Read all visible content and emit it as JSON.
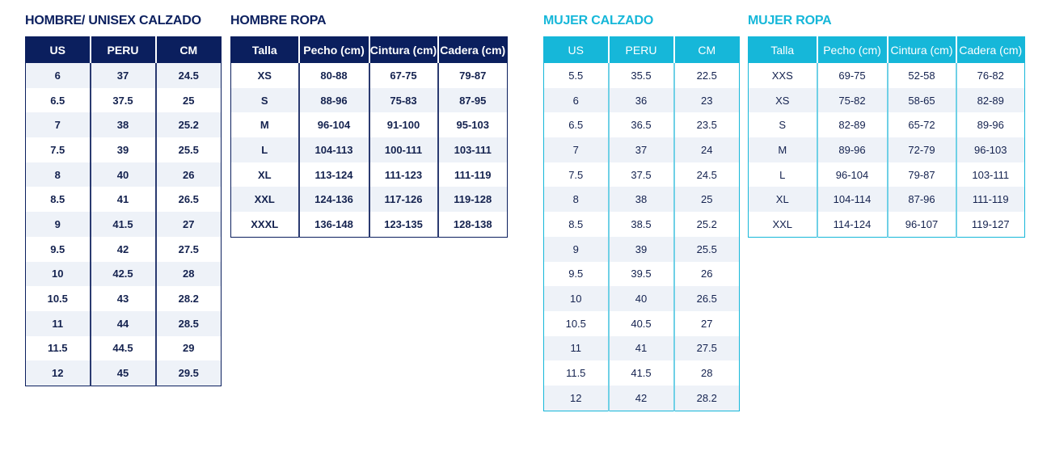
{
  "tables": [
    {
      "title": "HOMBRE/ UNISEX CALZADO",
      "theme": "navy",
      "color": "#0b1f5e",
      "headers": [
        "US",
        "PERU",
        "CM"
      ],
      "rows": [
        [
          "6",
          "37",
          "24.5"
        ],
        [
          "6.5",
          "37.5",
          "25"
        ],
        [
          "7",
          "38",
          "25.2"
        ],
        [
          "7.5",
          "39",
          "25.5"
        ],
        [
          "8",
          "40",
          "26"
        ],
        [
          "8.5",
          "41",
          "26.5"
        ],
        [
          "9",
          "41.5",
          "27"
        ],
        [
          "9.5",
          "42",
          "27.5"
        ],
        [
          "10",
          "42.5",
          "28"
        ],
        [
          "10.5",
          "43",
          "28.2"
        ],
        [
          "11",
          "44",
          "28.5"
        ],
        [
          "11.5",
          "44.5",
          "29"
        ],
        [
          "12",
          "45",
          "29.5"
        ]
      ]
    },
    {
      "title": "HOMBRE ROPA",
      "theme": "navy",
      "color": "#0b1f5e",
      "headers": [
        "Talla",
        "Pecho (cm)",
        "Cintura (cm)",
        "Cadera (cm)"
      ],
      "rows": [
        [
          "XS",
          "80-88",
          "67-75",
          "79-87"
        ],
        [
          "S",
          "88-96",
          "75-83",
          "87-95"
        ],
        [
          "M",
          "96-104",
          "91-100",
          "95-103"
        ],
        [
          "L",
          "104-113",
          "100-111",
          "103-111"
        ],
        [
          "XL",
          "113-124",
          "111-123",
          "111-119"
        ],
        [
          "XXL",
          "124-136",
          "117-126",
          "119-128"
        ],
        [
          "XXXL",
          "136-148",
          "123-135",
          "128-138"
        ]
      ]
    },
    {
      "title": "MUJER CALZADO",
      "theme": "cyan",
      "color": "#16b7d9",
      "headers": [
        "US",
        "PERU",
        "CM"
      ],
      "rows": [
        [
          "5.5",
          "35.5",
          "22.5"
        ],
        [
          "6",
          "36",
          "23"
        ],
        [
          "6.5",
          "36.5",
          "23.5"
        ],
        [
          "7",
          "37",
          "24"
        ],
        [
          "7.5",
          "37.5",
          "24.5"
        ],
        [
          "8",
          "38",
          "25"
        ],
        [
          "8.5",
          "38.5",
          "25.2"
        ],
        [
          "9",
          "39",
          "25.5"
        ],
        [
          "9.5",
          "39.5",
          "26"
        ],
        [
          "10",
          "40",
          "26.5"
        ],
        [
          "10.5",
          "40.5",
          "27"
        ],
        [
          "11",
          "41",
          "27.5"
        ],
        [
          "11.5",
          "41.5",
          "28"
        ],
        [
          "12",
          "42",
          "28.2"
        ]
      ]
    },
    {
      "title": "MUJER ROPA",
      "theme": "cyan",
      "color": "#16b7d9",
      "headers": [
        "Talla",
        "Pecho (cm)",
        "Cintura (cm)",
        "Cadera (cm)"
      ],
      "rows": [
        [
          "XXS",
          "69-75",
          "52-58",
          "76-82"
        ],
        [
          "XS",
          "75-82",
          "58-65",
          "82-89"
        ],
        [
          "S",
          "82-89",
          "65-72",
          "89-96"
        ],
        [
          "M",
          "89-96",
          "72-79",
          "96-103"
        ],
        [
          "L",
          "96-104",
          "79-87",
          "103-111"
        ],
        [
          "XL",
          "104-114",
          "87-96",
          "111-119"
        ],
        [
          "XXL",
          "114-124",
          "96-107",
          "119-127"
        ]
      ]
    }
  ]
}
